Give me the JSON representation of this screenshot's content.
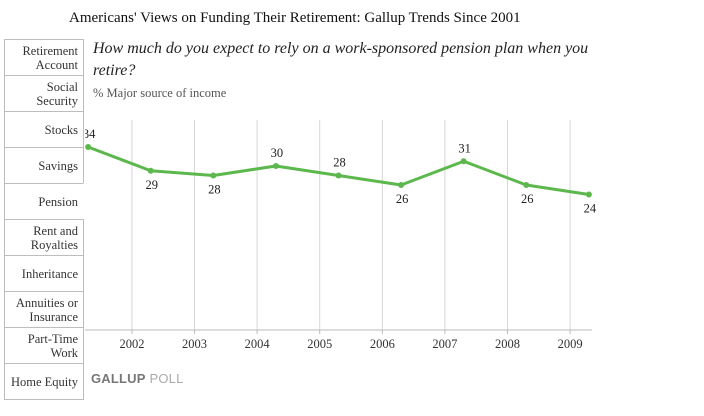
{
  "header": {
    "title": "Americans' Views on Funding Their Retirement: Gallup Trends Since 2001"
  },
  "sidebar": {
    "items": [
      {
        "label": "Retirement\nAccount"
      },
      {
        "label": "Social\nSecurity"
      },
      {
        "label": "Stocks"
      },
      {
        "label": "Savings"
      },
      {
        "label": "Pension"
      },
      {
        "label": "Rent and\nRoyalties"
      },
      {
        "label": "Inheritance"
      },
      {
        "label": "Annuities or\nInsurance"
      },
      {
        "label": "Part-Time\nWork"
      },
      {
        "label": "Home Equity"
      }
    ],
    "active_index": 4
  },
  "main": {
    "question": "How much do you expect to rely on a work-sponsored pension plan when you retire?",
    "subtitle": "% Major source of income",
    "brand": {
      "part1": "GALLUP",
      "part2": "POLL"
    }
  },
  "chart_data": {
    "type": "line",
    "title": "",
    "xlabel": "",
    "ylabel": "",
    "x_ticks": [
      "2002",
      "2003",
      "2004",
      "2005",
      "2006",
      "2007",
      "2008",
      "2009"
    ],
    "x": [
      2001.3,
      2002.3,
      2003.3,
      2004.3,
      2005.3,
      2006.3,
      2007.3,
      2008.3,
      2009.3
    ],
    "series": [
      {
        "values": [
          34,
          29,
          28,
          30,
          28,
          26,
          31,
          26,
          24
        ]
      }
    ],
    "xlim": [
      2001.25,
      2009.35
    ],
    "ylim": [
      0,
      40
    ],
    "grid": "vertical",
    "line_color": "#5cb84c"
  }
}
